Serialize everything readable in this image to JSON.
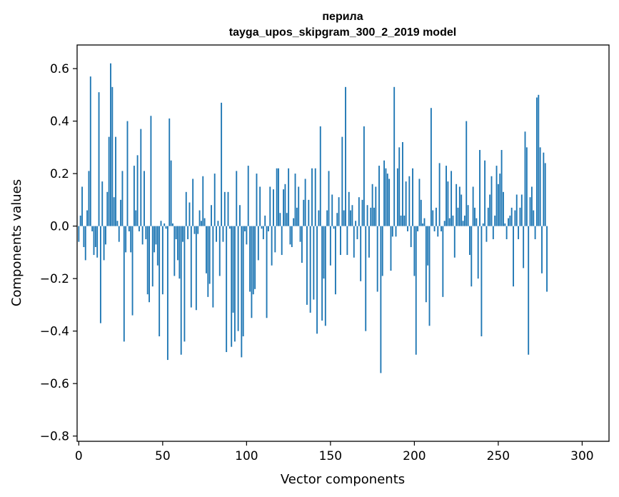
{
  "chart_data": {
    "type": "bar",
    "title_lines": [
      "перила",
      "tayga_upos_skipgram_300_2_2019 model"
    ],
    "xlabel": "Vector components",
    "ylabel": "Components values",
    "xlim": [
      -1,
      316
    ],
    "ylim": [
      -0.82,
      0.69
    ],
    "x_ticks": [
      0,
      50,
      100,
      150,
      200,
      250,
      300
    ],
    "y_ticks": [
      -0.8,
      -0.6,
      -0.4,
      -0.2,
      0.0,
      0.2,
      0.4,
      0.6
    ],
    "x_tick_labels": [
      "0",
      "50",
      "100",
      "150",
      "200",
      "250",
      "300"
    ],
    "y_tick_labels": [
      "−0.8",
      "−0.6",
      "−0.4",
      "−0.2",
      "0.0",
      "0.2",
      "0.4",
      "0.6"
    ],
    "grid": false,
    "bar_color": "#1f77b4",
    "values": [
      -0.06,
      0.04,
      0.15,
      -0.08,
      -0.13,
      0.06,
      0.21,
      0.57,
      -0.02,
      -0.11,
      -0.08,
      -0.12,
      0.51,
      -0.37,
      0.17,
      -0.13,
      -0.07,
      0.13,
      0.34,
      0.62,
      0.53,
      0.11,
      0.34,
      0.02,
      -0.06,
      0.1,
      0.21,
      -0.44,
      -0.1,
      0.4,
      -0.02,
      -0.1,
      -0.34,
      0.23,
      0.06,
      0.27,
      -0.02,
      0.37,
      -0.07,
      0.21,
      -0.05,
      -0.26,
      -0.29,
      0.42,
      -0.23,
      -0.1,
      -0.07,
      -0.15,
      -0.42,
      0.02,
      -0.26,
      0.01,
      -0.01,
      -0.51,
      0.41,
      0.25,
      0.01,
      -0.19,
      -0.05,
      -0.13,
      -0.2,
      -0.49,
      -0.06,
      -0.44,
      0.13,
      -0.05,
      0.09,
      -0.31,
      0.18,
      -0.03,
      -0.32,
      -0.03,
      0.06,
      0.02,
      0.19,
      0.03,
      -0.18,
      -0.27,
      -0.22,
      0.08,
      -0.31,
      0.2,
      -0.06,
      0.02,
      -0.19,
      0.47,
      -0.06,
      0.13,
      -0.48,
      0.13,
      -0.01,
      -0.46,
      -0.33,
      -0.44,
      0.21,
      -0.4,
      0.08,
      -0.5,
      -0.42,
      -0.02,
      -0.07,
      0.23,
      -0.25,
      -0.35,
      -0.26,
      -0.24,
      0.2,
      -0.13,
      0.15,
      -0.01,
      -0.05,
      0.04,
      -0.35,
      -0.02,
      0.15,
      -0.15,
      0.14,
      -0.1,
      0.22,
      0.22,
      0.05,
      -0.11,
      0.14,
      0.16,
      0.05,
      0.22,
      -0.07,
      -0.08,
      0.03,
      0.2,
      0.07,
      0.15,
      -0.06,
      -0.14,
      0.1,
      0.18,
      -0.3,
      0.1,
      -0.33,
      0.22,
      -0.28,
      0.22,
      -0.41,
      0.06,
      0.38,
      -0.36,
      -0.2,
      -0.38,
      0.06,
      0.21,
      -0.15,
      0.12,
      -0.01,
      -0.26,
      0.05,
      0.11,
      -0.11,
      0.34,
      0.06,
      0.53,
      -0.11,
      0.13,
      0.06,
      0.08,
      -0.12,
      0.02,
      -0.05,
      0.11,
      -0.21,
      0.1,
      0.38,
      -0.4,
      0.08,
      -0.12,
      0.07,
      0.16,
      0.07,
      0.15,
      -0.25,
      0.23,
      -0.56,
      -0.19,
      0.25,
      0.22,
      0.2,
      0.18,
      -0.17,
      -0.04,
      0.53,
      -0.04,
      0.22,
      0.3,
      0.04,
      0.32,
      0.04,
      0.17,
      -0.02,
      0.19,
      -0.08,
      0.22,
      -0.19,
      -0.49,
      -0.02,
      0.18,
      0.1,
      0.01,
      0.03,
      -0.29,
      -0.15,
      -0.38,
      0.45,
      0.06,
      -0.02,
      0.07,
      -0.04,
      0.24,
      -0.02,
      -0.27,
      0.02,
      0.23,
      0.17,
      0.03,
      0.21,
      0.04,
      -0.12,
      0.16,
      0.07,
      0.15,
      0.12,
      0.02,
      0.04,
      0.4,
      0.08,
      -0.11,
      -0.23,
      0.15,
      0.07,
      0.03,
      -0.2,
      0.29,
      -0.42,
      0.01,
      0.25,
      -0.06,
      0.07,
      0.12,
      0.19,
      -0.05,
      0.04,
      0.23,
      0.16,
      0.2,
      0.29,
      0.13,
      0.01,
      -0.05,
      0.03,
      0.04,
      0.07,
      -0.23,
      0.06,
      0.12,
      -0.05,
      0.07,
      0.12,
      -0.16,
      0.36,
      0.3,
      -0.49,
      0.11,
      0.15,
      0.06,
      -0.05,
      0.49,
      0.5,
      0.3,
      -0.18,
      0.28,
      0.24,
      -0.25
    ]
  }
}
